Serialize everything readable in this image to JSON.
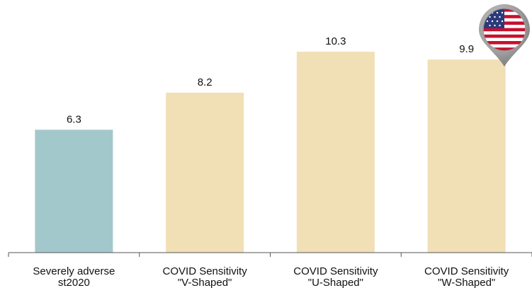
{
  "chart_data": {
    "type": "bar",
    "title": "",
    "xlabel": "",
    "ylabel": "",
    "categories": [
      [
        "Severely adverse",
        "st2020"
      ],
      [
        "COVID Sensitivity",
        "\"V-Shaped\""
      ],
      [
        "COVID Sensitivity",
        "\"U-Shaped\""
      ],
      [
        "COVID Sensitivity",
        "\"W-Shaped\""
      ]
    ],
    "values": [
      6.3,
      8.2,
      10.3,
      9.9
    ],
    "value_labels": [
      "6.3",
      "8.2",
      "10.3",
      "9.9"
    ],
    "bar_colors": [
      "#a3c8cc",
      "#f1dfb6",
      "#f1dfb6",
      "#f1dfb6"
    ],
    "ylim": [
      0,
      11.5
    ],
    "grid": false,
    "legend": "none"
  },
  "flag_icon": "us-flag-map-pin-icon"
}
